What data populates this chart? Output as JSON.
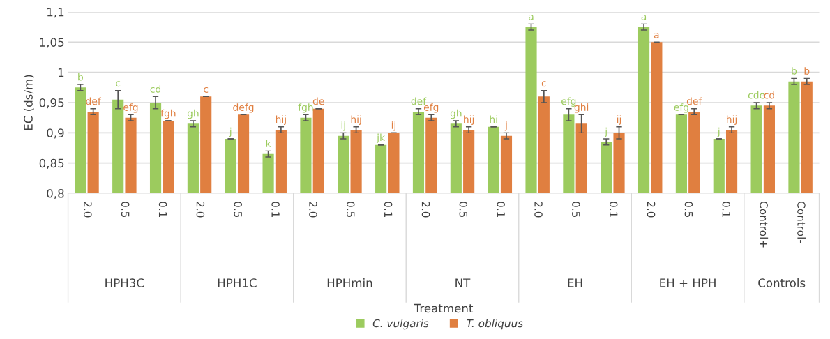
{
  "chart_data": {
    "type": "bar",
    "xlabel": "Treatment",
    "ylabel": "EC (ds/m)",
    "categories": [
      "2.0",
      "0.5",
      "0.1",
      "2.0",
      "0.5",
      "0.1",
      "2.0",
      "0.5",
      "0.1",
      "2.0",
      "0.5",
      "0.1",
      "2.0",
      "0.5",
      "0.1",
      "2.0",
      "0.5",
      "0.1",
      "Control+",
      "Control-"
    ],
    "annotations": [
      "HPH3C",
      "HPH1C",
      "HPHmin",
      "NT",
      "EH",
      "EH + HPH",
      "Controls"
    ],
    "series": [
      {
        "name": "C. vulgaris",
        "color": "#9ccb5e",
        "values": [
          0.975,
          0.955,
          0.95,
          0.915,
          0.89,
          0.865,
          0.925,
          0.895,
          0.88,
          0.935,
          0.915,
          0.91,
          1.075,
          0.93,
          0.885,
          1.075,
          0.93,
          0.89,
          0.945,
          0.985
        ],
        "errors": [
          0.005,
          0.015,
          0.01,
          0.005,
          0,
          0.005,
          0.005,
          0.005,
          0,
          0.005,
          0.005,
          0,
          0.005,
          0.01,
          0.005,
          0.005,
          0,
          0,
          0.005,
          0.005
        ],
        "value_labels": [
          "b",
          "c",
          "cd",
          "gh",
          "j",
          "k",
          "fgh",
          "ij",
          "jk",
          "def",
          "gh",
          "hi",
          "a",
          "efg",
          "j",
          "a",
          "efg",
          "j",
          "cde",
          "b"
        ]
      },
      {
        "name": "T. obliquus",
        "color": "#e07f40",
        "values": [
          0.935,
          0.925,
          0.92,
          0.96,
          0.93,
          0.905,
          0.94,
          0.905,
          0.9,
          0.925,
          0.905,
          0.895,
          0.96,
          0.915,
          0.9,
          1.05,
          0.935,
          0.905,
          0.945,
          0.985
        ],
        "errors": [
          0.005,
          0.005,
          0,
          0,
          0,
          0.005,
          0,
          0.005,
          0,
          0.005,
          0.005,
          0.005,
          0.01,
          0.015,
          0.01,
          0,
          0.005,
          0.005,
          0.005,
          0.005
        ],
        "value_labels": [
          "def",
          "efg",
          "fgh",
          "c",
          "defg",
          "hij",
          "de",
          "hij",
          "ij",
          "efg",
          "hij",
          "j",
          "c",
          "ghi",
          "ij",
          "a",
          "def",
          "hij",
          "cd",
          "b"
        ]
      }
    ],
    "ylim": [
      0.8,
      1.1
    ],
    "yticks": [
      {
        "value": 0.8,
        "label": "0,8"
      },
      {
        "value": 0.85,
        "label": "0,85"
      },
      {
        "value": 0.9,
        "label": "0,9"
      },
      {
        "value": 0.95,
        "label": "0,95"
      },
      {
        "value": 1,
        "label": "1"
      },
      {
        "value": 1.05,
        "label": "1,05"
      },
      {
        "value": 1.1,
        "label": "1,1"
      }
    ],
    "grid": "y",
    "legend": "bottom"
  }
}
